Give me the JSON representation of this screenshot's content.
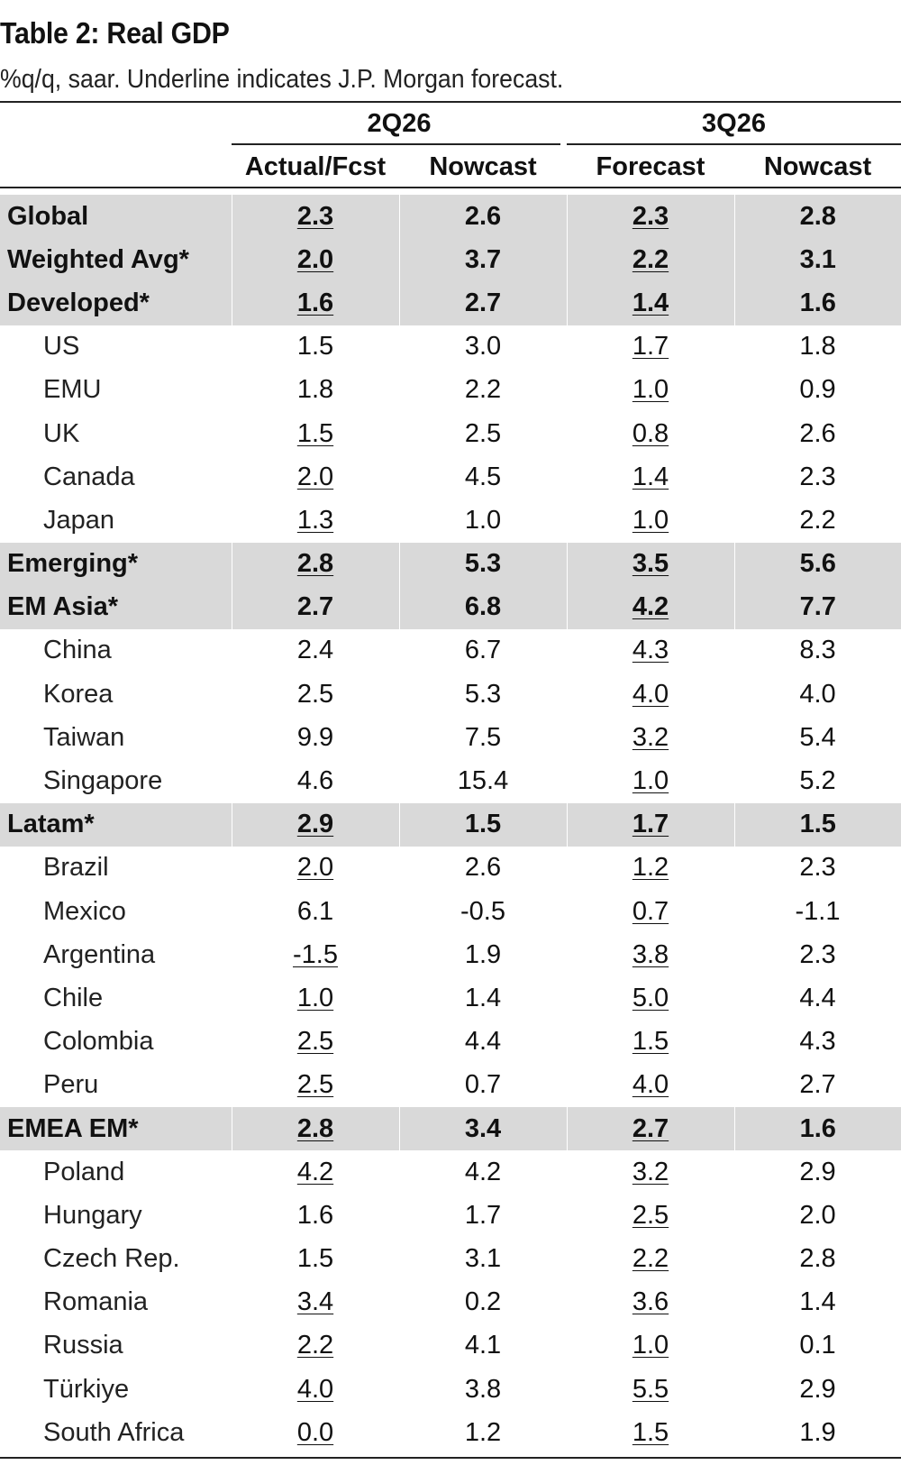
{
  "title": "Table 2: Real GDP",
  "subtitle": "%q/q, saar. Underline indicates J.P. Morgan forecast.",
  "header": {
    "group1": "2Q26",
    "group2": "3Q26",
    "col1": "Actual/Fcst",
    "col2": "Nowcast",
    "col3": "Forecast",
    "col4": "Nowcast"
  },
  "rows": [
    {
      "label": "Global",
      "type": "aggregate",
      "values": [
        "2.3",
        "2.6",
        "2.3",
        "2.8"
      ],
      "underline": [
        true,
        false,
        true,
        false
      ]
    },
    {
      "label": "Weighted Avg*",
      "type": "aggregate",
      "values": [
        "2.0",
        "3.7",
        "2.2",
        "3.1"
      ],
      "underline": [
        true,
        false,
        true,
        false
      ]
    },
    {
      "label": "Developed*",
      "type": "aggregate",
      "values": [
        "1.6",
        "2.7",
        "1.4",
        "1.6"
      ],
      "underline": [
        true,
        false,
        true,
        false
      ]
    },
    {
      "label": "US",
      "type": "country",
      "values": [
        "1.5",
        "3.0",
        "1.7",
        "1.8"
      ],
      "underline": [
        false,
        false,
        true,
        false
      ]
    },
    {
      "label": "EMU",
      "type": "country",
      "values": [
        "1.8",
        "2.2",
        "1.0",
        "0.9"
      ],
      "underline": [
        false,
        false,
        true,
        false
      ]
    },
    {
      "label": "UK",
      "type": "country",
      "values": [
        "1.5",
        "2.5",
        "0.8",
        "2.6"
      ],
      "underline": [
        true,
        false,
        true,
        false
      ]
    },
    {
      "label": "Canada",
      "type": "country",
      "values": [
        "2.0",
        "4.5",
        "1.4",
        "2.3"
      ],
      "underline": [
        true,
        false,
        true,
        false
      ]
    },
    {
      "label": "Japan",
      "type": "country",
      "values": [
        "1.3",
        "1.0",
        "1.0",
        "2.2"
      ],
      "underline": [
        true,
        false,
        true,
        false
      ]
    },
    {
      "label": "Emerging*",
      "type": "aggregate",
      "values": [
        "2.8",
        "5.3",
        "3.5",
        "5.6"
      ],
      "underline": [
        true,
        false,
        true,
        false
      ]
    },
    {
      "label": "EM Asia*",
      "type": "aggregate",
      "values": [
        "2.7",
        "6.8",
        "4.2",
        "7.7"
      ],
      "underline": [
        false,
        false,
        true,
        false
      ]
    },
    {
      "label": "China",
      "type": "country",
      "values": [
        "2.4",
        "6.7",
        "4.3",
        "8.3"
      ],
      "underline": [
        false,
        false,
        true,
        false
      ]
    },
    {
      "label": "Korea",
      "type": "country",
      "values": [
        "2.5",
        "5.3",
        "4.0",
        "4.0"
      ],
      "underline": [
        false,
        false,
        true,
        false
      ]
    },
    {
      "label": "Taiwan",
      "type": "country",
      "values": [
        "9.9",
        "7.5",
        "3.2",
        "5.4"
      ],
      "underline": [
        false,
        false,
        true,
        false
      ]
    },
    {
      "label": "Singapore",
      "type": "country",
      "values": [
        "4.6",
        "15.4",
        "1.0",
        "5.2"
      ],
      "underline": [
        false,
        false,
        true,
        false
      ]
    },
    {
      "label": "Latam*",
      "type": "aggregate",
      "values": [
        "2.9",
        "1.5",
        "1.7",
        "1.5"
      ],
      "underline": [
        true,
        false,
        true,
        false
      ]
    },
    {
      "label": "Brazil",
      "type": "country",
      "values": [
        "2.0",
        "2.6",
        "1.2",
        "2.3"
      ],
      "underline": [
        true,
        false,
        true,
        false
      ]
    },
    {
      "label": "Mexico",
      "type": "country",
      "values": [
        "6.1",
        "-0.5",
        "0.7",
        "-1.1"
      ],
      "underline": [
        false,
        false,
        true,
        false
      ]
    },
    {
      "label": "Argentina",
      "type": "country",
      "values": [
        "-1.5",
        "1.9",
        "3.8",
        "2.3"
      ],
      "underline": [
        true,
        false,
        true,
        false
      ]
    },
    {
      "label": "Chile",
      "type": "country",
      "values": [
        "1.0",
        "1.4",
        "5.0",
        "4.4"
      ],
      "underline": [
        true,
        false,
        true,
        false
      ]
    },
    {
      "label": "Colombia",
      "type": "country",
      "values": [
        "2.5",
        "4.4",
        "1.5",
        "4.3"
      ],
      "underline": [
        true,
        false,
        true,
        false
      ]
    },
    {
      "label": "Peru",
      "type": "country",
      "values": [
        "2.5",
        "0.7",
        "4.0",
        "2.7"
      ],
      "underline": [
        true,
        false,
        true,
        false
      ]
    },
    {
      "label": "EMEA EM*",
      "type": "aggregate",
      "values": [
        "2.8",
        "3.4",
        "2.7",
        "1.6"
      ],
      "underline": [
        true,
        false,
        true,
        false
      ]
    },
    {
      "label": "Poland",
      "type": "country",
      "values": [
        "4.2",
        "4.2",
        "3.2",
        "2.9"
      ],
      "underline": [
        true,
        false,
        true,
        false
      ]
    },
    {
      "label": "Hungary",
      "type": "country",
      "values": [
        "1.6",
        "1.7",
        "2.5",
        "2.0"
      ],
      "underline": [
        false,
        false,
        true,
        false
      ]
    },
    {
      "label": "Czech Rep.",
      "type": "country",
      "values": [
        "1.5",
        "3.1",
        "2.2",
        "2.8"
      ],
      "underline": [
        false,
        false,
        true,
        false
      ]
    },
    {
      "label": "Romania",
      "type": "country",
      "values": [
        "3.4",
        "0.2",
        "3.6",
        "1.4"
      ],
      "underline": [
        true,
        false,
        true,
        false
      ]
    },
    {
      "label": "Russia",
      "type": "country",
      "values": [
        "2.2",
        "4.1",
        "1.0",
        "0.1"
      ],
      "underline": [
        true,
        false,
        true,
        false
      ]
    },
    {
      "label": "Türkiye",
      "type": "country",
      "values": [
        "4.0",
        "3.8",
        "5.5",
        "2.9"
      ],
      "underline": [
        true,
        false,
        true,
        false
      ]
    },
    {
      "label": "South Africa",
      "type": "country",
      "values": [
        "0.0",
        "1.2",
        "1.5",
        "1.9"
      ],
      "underline": [
        true,
        false,
        true,
        false
      ]
    }
  ]
}
